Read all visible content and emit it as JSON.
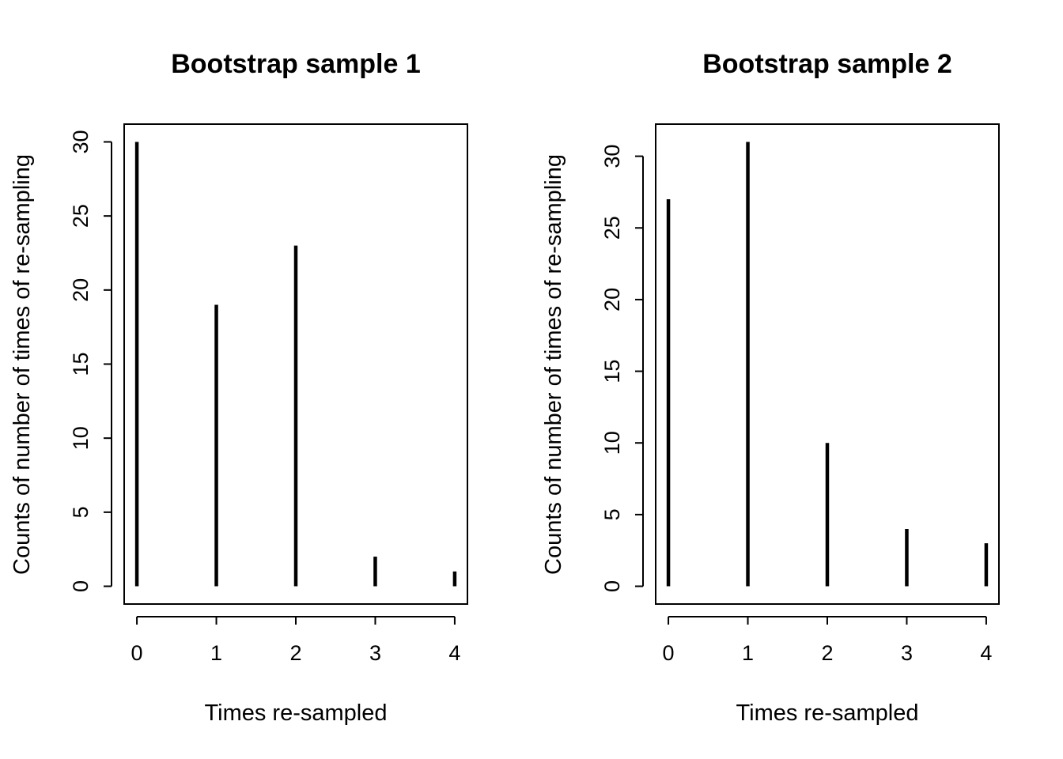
{
  "chart_data": [
    {
      "type": "bar",
      "title": "Bootstrap sample 1",
      "xlabel": "Times re-sampled",
      "ylabel": "Counts of number of times of re-sampling",
      "x": [
        0,
        1,
        2,
        3,
        4
      ],
      "values": [
        30,
        19,
        23,
        2,
        1
      ],
      "xticks": [
        "0",
        "1",
        "2",
        "3",
        "4"
      ],
      "yticks": [
        "0",
        "5",
        "10",
        "15",
        "20",
        "25",
        "30"
      ],
      "ylim": [
        0,
        30
      ],
      "grid": false
    },
    {
      "type": "bar",
      "title": "Bootstrap sample 2",
      "xlabel": "Times re-sampled",
      "ylabel": "Counts of number of times of re-sampling",
      "x": [
        0,
        1,
        2,
        3,
        4
      ],
      "values": [
        27,
        31,
        10,
        4,
        3
      ],
      "xticks": [
        "0",
        "1",
        "2",
        "3",
        "4"
      ],
      "yticks": [
        "0",
        "5",
        "10",
        "15",
        "20",
        "25",
        "30"
      ],
      "ylim": [
        0,
        31
      ],
      "grid": false
    }
  ]
}
